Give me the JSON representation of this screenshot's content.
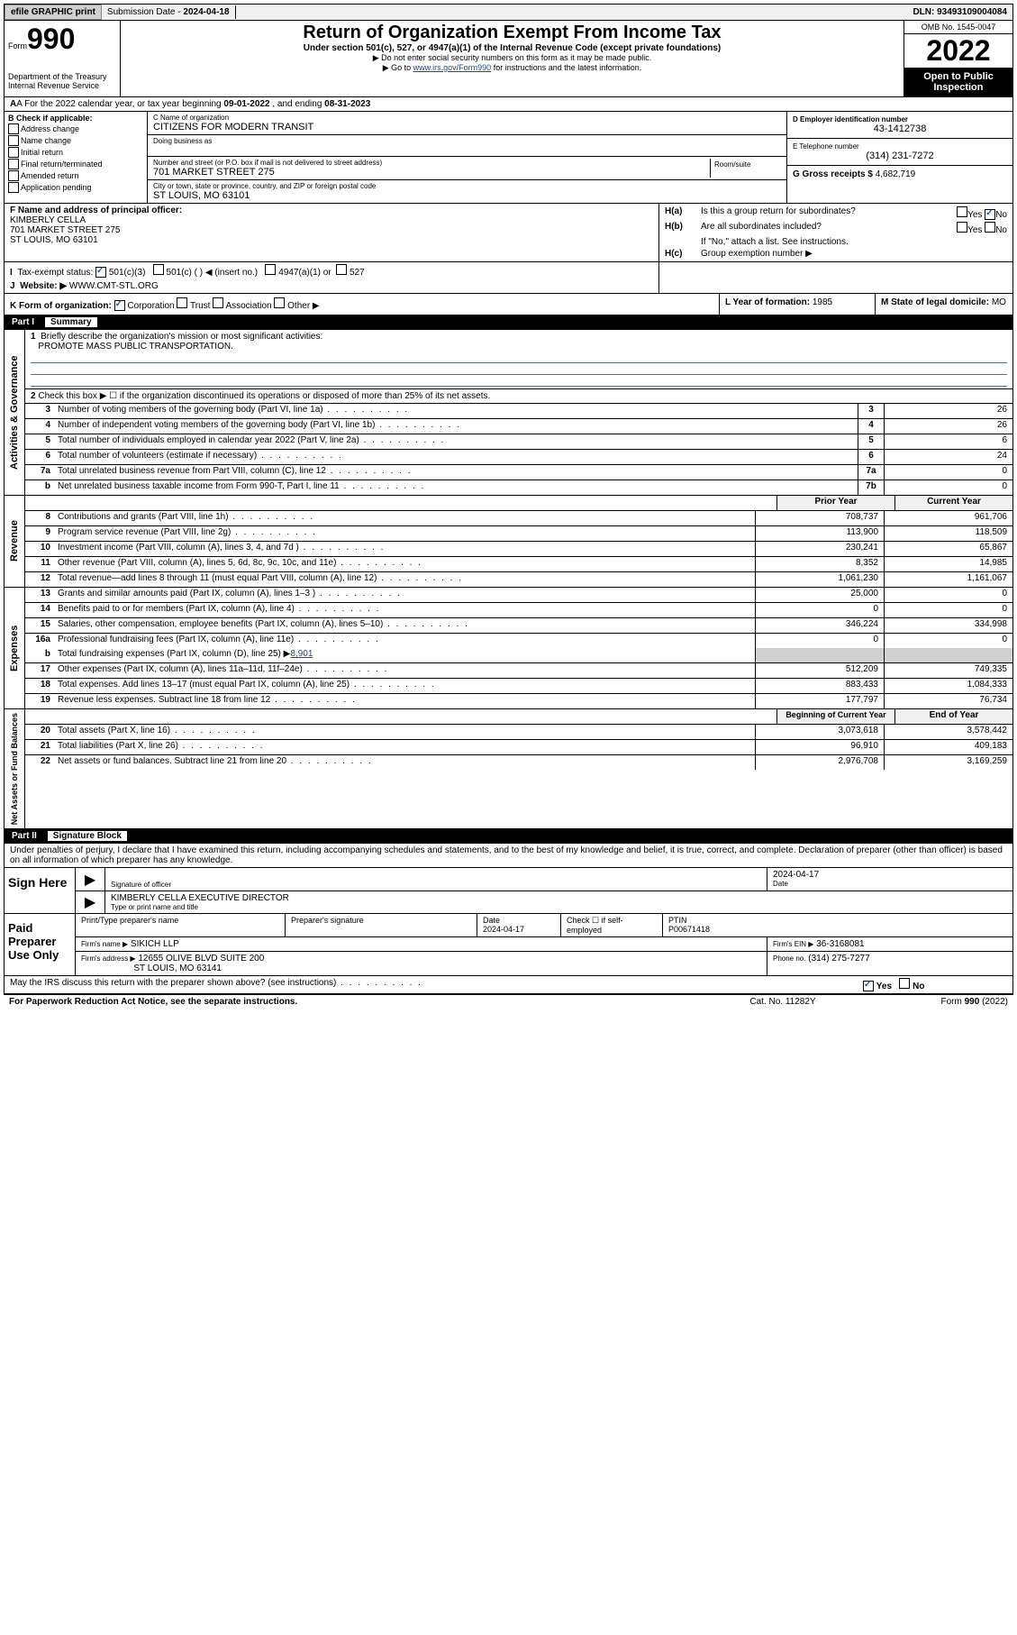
{
  "topbar": {
    "efile": "efile GRAPHIC print",
    "sub_label": "Submission Date -",
    "sub_date": "2024-04-18",
    "dln_label": "DLN:",
    "dln": "93493109004084"
  },
  "header": {
    "form_prefix": "Form",
    "form_num": "990",
    "dept": "Department of the Treasury\nInternal Revenue Service",
    "title": "Return of Organization Exempt From Income Tax",
    "subtitle": "Under section 501(c), 527, or 4947(a)(1) of the Internal Revenue Code (except private foundations)",
    "instr1": "▶ Do not enter social security numbers on this form as it may be made public.",
    "instr2_pre": "▶ Go to ",
    "instr2_link": "www.irs.gov/Form990",
    "instr2_post": " for instructions and the latest information.",
    "omb": "OMB No. 1545-0047",
    "year": "2022",
    "open": "Open to Public Inspection"
  },
  "row_a": {
    "text_pre": "A For the 2022 calendar year, or tax year beginning ",
    "begin": "09-01-2022",
    "mid": " , and ending ",
    "end": "08-31-2023"
  },
  "col_b": {
    "header": "B Check if applicable:",
    "items": [
      "Address change",
      "Name change",
      "Initial return",
      "Final return/terminated",
      "Amended return",
      "Application pending"
    ]
  },
  "col_c": {
    "name_label": "C Name of organization",
    "name": "CITIZENS FOR MODERN TRANSIT",
    "dba_label": "Doing business as",
    "addr_label": "Number and street (or P.O. box if mail is not delivered to street address)",
    "addr": "701 MARKET STREET 275",
    "room_label": "Room/suite",
    "city_label": "City or town, state or province, country, and ZIP or foreign postal code",
    "city": "ST LOUIS, MO  63101"
  },
  "col_de": {
    "d_label": "D Employer identification number",
    "ein": "43-1412738",
    "e_label": "E Telephone number",
    "phone": "(314) 231-7272",
    "g_label": "G Gross receipts $",
    "gross": "4,682,719"
  },
  "officer": {
    "label": "F Name and address of principal officer:",
    "name": "KIMBERLY CELLA",
    "addr": "701 MARKET STREET 275",
    "city": "ST LOUIS, MO  63101"
  },
  "h": {
    "a_text": "Is this a group return for subordinates?",
    "b_text": "Are all subordinates included?",
    "b_note": "If \"No,\" attach a list. See instructions.",
    "c_text": "Group exemption number ▶",
    "yes": "Yes",
    "no": "No"
  },
  "row_i": {
    "label": "Tax-exempt status:",
    "opts": [
      "501(c)(3)",
      "501(c) (  ) ◀ (insert no.)",
      "4947(a)(1) or",
      "527"
    ]
  },
  "row_j": {
    "label": "Website: ▶",
    "val": "WWW.CMT-STL.ORG"
  },
  "row_k": {
    "label": "K Form of organization:",
    "opts": [
      "Corporation",
      "Trust",
      "Association",
      "Other ▶"
    ],
    "l_label": "L Year of formation:",
    "l_val": "1985",
    "m_label": "M State of legal domicile:",
    "m_val": "MO"
  },
  "part1": {
    "num": "Part I",
    "title": "Summary"
  },
  "gov": {
    "label": "Activities & Governance",
    "l1_num": "1",
    "l1": "Briefly describe the organization's mission or most significant activities:",
    "l1_val": "PROMOTE MASS PUBLIC TRANSPORTATION.",
    "l2_num": "2",
    "l2": "Check this box ▶ ☐  if the organization discontinued its operations or disposed of more than 25% of its net assets.",
    "rows": [
      {
        "n": "3",
        "d": "Number of voting members of the governing body (Part VI, line 1a)",
        "b": "3",
        "v": "26"
      },
      {
        "n": "4",
        "d": "Number of independent voting members of the governing body (Part VI, line 1b)",
        "b": "4",
        "v": "26"
      },
      {
        "n": "5",
        "d": "Total number of individuals employed in calendar year 2022 (Part V, line 2a)",
        "b": "5",
        "v": "6"
      },
      {
        "n": "6",
        "d": "Total number of volunteers (estimate if necessary)",
        "b": "6",
        "v": "24"
      },
      {
        "n": "7a",
        "d": "Total unrelated business revenue from Part VIII, column (C), line 12",
        "b": "7a",
        "v": "0"
      },
      {
        "n": "b",
        "d": "Net unrelated business taxable income from Form 990-T, Part I, line 11",
        "b": "7b",
        "v": "0"
      }
    ]
  },
  "rev": {
    "label": "Revenue",
    "head_prior": "Prior Year",
    "head_curr": "Current Year",
    "rows": [
      {
        "n": "8",
        "d": "Contributions and grants (Part VIII, line 1h)",
        "p": "708,737",
        "c": "961,706"
      },
      {
        "n": "9",
        "d": "Program service revenue (Part VIII, line 2g)",
        "p": "113,900",
        "c": "118,509"
      },
      {
        "n": "10",
        "d": "Investment income (Part VIII, column (A), lines 3, 4, and 7d )",
        "p": "230,241",
        "c": "65,867"
      },
      {
        "n": "11",
        "d": "Other revenue (Part VIII, column (A), lines 5, 6d, 8c, 9c, 10c, and 11e)",
        "p": "8,352",
        "c": "14,985"
      },
      {
        "n": "12",
        "d": "Total revenue—add lines 8 through 11 (must equal Part VIII, column (A), line 12)",
        "p": "1,061,230",
        "c": "1,161,067"
      }
    ]
  },
  "exp": {
    "label": "Expenses",
    "rows": [
      {
        "n": "13",
        "d": "Grants and similar amounts paid (Part IX, column (A), lines 1–3 )",
        "p": "25,000",
        "c": "0"
      },
      {
        "n": "14",
        "d": "Benefits paid to or for members (Part IX, column (A), line 4)",
        "p": "0",
        "c": "0"
      },
      {
        "n": "15",
        "d": "Salaries, other compensation, employee benefits (Part IX, column (A), lines 5–10)",
        "p": "346,224",
        "c": "334,998"
      },
      {
        "n": "16a",
        "d": "Professional fundraising fees (Part IX, column (A), line 11e)",
        "p": "0",
        "c": "0"
      }
    ],
    "l16b_n": "b",
    "l16b": "Total fundraising expenses (Part IX, column (D), line 25) ▶",
    "l16b_v": "8,901",
    "rows2": [
      {
        "n": "17",
        "d": "Other expenses (Part IX, column (A), lines 11a–11d, 11f–24e)",
        "p": "512,209",
        "c": "749,335"
      },
      {
        "n": "18",
        "d": "Total expenses. Add lines 13–17 (must equal Part IX, column (A), line 25)",
        "p": "883,433",
        "c": "1,084,333"
      },
      {
        "n": "19",
        "d": "Revenue less expenses. Subtract line 18 from line 12",
        "p": "177,797",
        "c": "76,734"
      }
    ]
  },
  "net": {
    "label": "Net Assets or Fund Balances",
    "head_begin": "Beginning of Current Year",
    "head_end": "End of Year",
    "rows": [
      {
        "n": "20",
        "d": "Total assets (Part X, line 16)",
        "p": "3,073,618",
        "c": "3,578,442"
      },
      {
        "n": "21",
        "d": "Total liabilities (Part X, line 26)",
        "p": "96,910",
        "c": "409,183"
      },
      {
        "n": "22",
        "d": "Net assets or fund balances. Subtract line 21 from line 20",
        "p": "2,976,708",
        "c": "3,169,259"
      }
    ]
  },
  "part2": {
    "num": "Part II",
    "title": "Signature Block"
  },
  "sig": {
    "decl": "Under penalties of perjury, I declare that I have examined this return, including accompanying schedules and statements, and to the best of my knowledge and belief, it is true, correct, and complete. Declaration of preparer (other than officer) is based on all information of which preparer has any knowledge.",
    "sign_here": "Sign Here",
    "sig_officer": "Signature of officer",
    "sig_date": "2024-04-17",
    "date_label": "Date",
    "officer_name": "KIMBERLY CELLA  EXECUTIVE DIRECTOR",
    "type_name": "Type or print name and title"
  },
  "prep": {
    "label": "Paid Preparer Use Only",
    "h_name": "Print/Type preparer's name",
    "h_sig": "Preparer's signature",
    "h_date": "Date",
    "date": "2024-04-17",
    "check_label": "Check ☐ if self-employed",
    "ptin_label": "PTIN",
    "ptin": "P00671418",
    "firm_name_label": "Firm's name    ▶",
    "firm_name": "SIKICH LLP",
    "firm_ein_label": "Firm's EIN ▶",
    "firm_ein": "36-3168081",
    "firm_addr_label": "Firm's address ▶",
    "firm_addr1": "12655 OLIVE BLVD SUITE 200",
    "firm_addr2": "ST LOUIS, MO  63141",
    "phone_label": "Phone no.",
    "phone": "(314) 275-7277"
  },
  "footer": {
    "discuss": "May the IRS discuss this return with the preparer shown above? (see instructions)",
    "yes": "Yes",
    "no": "No",
    "paperwork": "For Paperwork Reduction Act Notice, see the separate instructions.",
    "cat": "Cat. No. 11282Y",
    "form": "Form 990 (2022)"
  }
}
